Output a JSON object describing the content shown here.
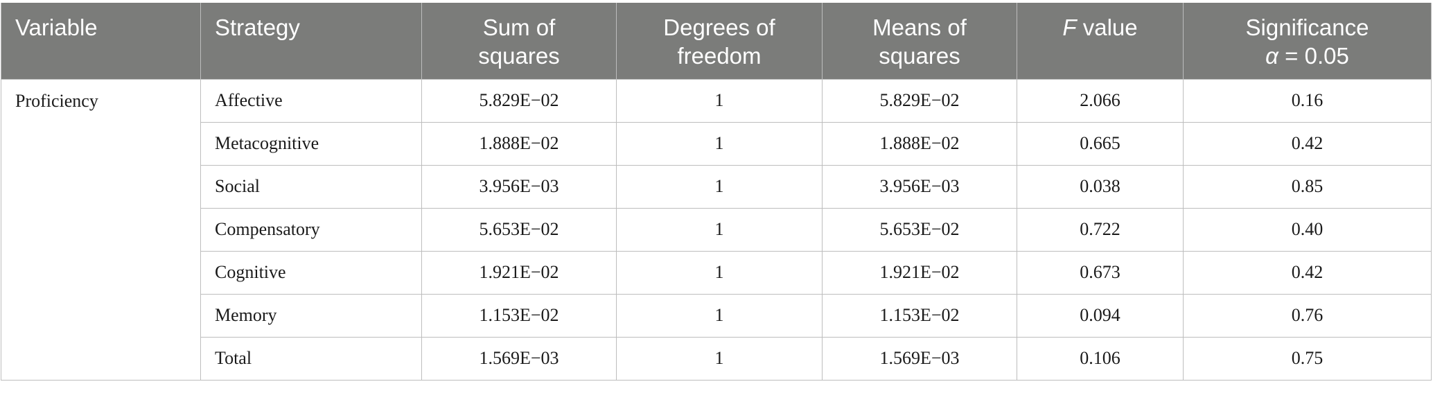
{
  "table": {
    "headers": {
      "variable": "Variable",
      "strategy": "Strategy",
      "sum_of_squares_1": "Sum of",
      "sum_of_squares_2": "squares",
      "degrees_of_freedom_1": "Degrees of",
      "degrees_of_freedom_2": "freedom",
      "means_of_squares_1": "Means of",
      "means_of_squares_2": "squares",
      "f_value_symbol": "F",
      "f_value_text": " value",
      "significance_1": "Significance",
      "significance_alpha": "α",
      "significance_value": " = 0.05"
    },
    "variable_label": "Proficiency",
    "rows": [
      {
        "strategy": "Affective",
        "sum_of_squares": "5.829E−02",
        "df": "1",
        "mean_squares": "5.829E−02",
        "f_value": "2.066",
        "significance": "0.16"
      },
      {
        "strategy": "Metacognitive",
        "sum_of_squares": "1.888E−02",
        "df": "1",
        "mean_squares": "1.888E−02",
        "f_value": "0.665",
        "significance": "0.42"
      },
      {
        "strategy": "Social",
        "sum_of_squares": "3.956E−03",
        "df": "1",
        "mean_squares": "3.956E−03",
        "f_value": "0.038",
        "significance": "0.85"
      },
      {
        "strategy": "Compensatory",
        "sum_of_squares": "5.653E−02",
        "df": "1",
        "mean_squares": "5.653E−02",
        "f_value": "0.722",
        "significance": "0.40"
      },
      {
        "strategy": "Cognitive",
        "sum_of_squares": "1.921E−02",
        "df": "1",
        "mean_squares": "1.921E−02",
        "f_value": "0.673",
        "significance": "0.42"
      },
      {
        "strategy": "Memory",
        "sum_of_squares": "1.153E−02",
        "df": "1",
        "mean_squares": "1.153E−02",
        "f_value": "0.094",
        "significance": "0.76"
      },
      {
        "strategy": "Total",
        "sum_of_squares": "1.569E−03",
        "df": "1",
        "mean_squares": "1.569E−03",
        "f_value": "0.106",
        "significance": "0.75"
      }
    ]
  },
  "colors": {
    "header_background": "#7b7c7a",
    "header_text": "#ffffff",
    "grid_line": "#bdbdbd",
    "body_text": "#1a1a1a"
  }
}
